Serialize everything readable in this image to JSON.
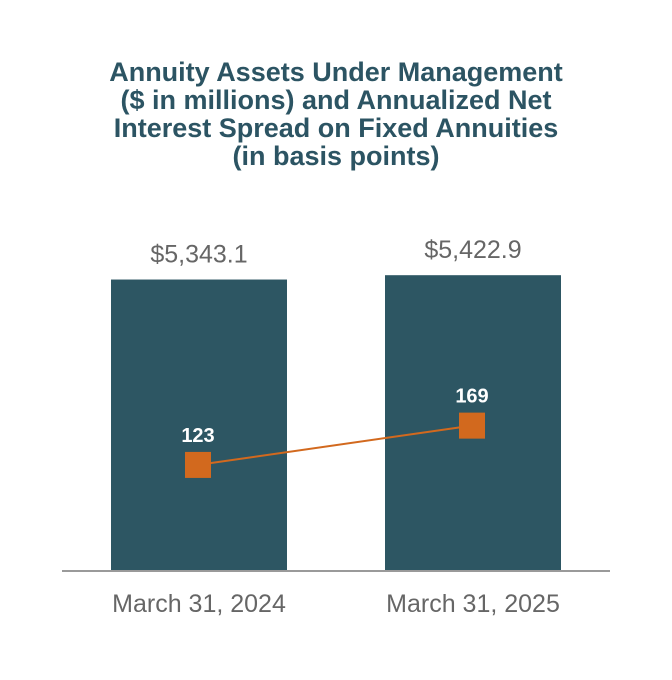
{
  "chart_data": {
    "type": "bar",
    "title": "Annuity Assets Under Management ($ in millions) and Annualized Net Interest Spread on Fixed Annuities (in basis points)",
    "categories": [
      "March 31, 2024",
      "March 31, 2025"
    ],
    "series": [
      {
        "name": "Annuity Assets Under Management ($ in millions)",
        "type": "bar",
        "values": [
          5343.1,
          5422.9
        ],
        "labels": [
          "$5,343.1",
          "$5,422.9"
        ],
        "color": "#2d5663",
        "ylim": [
          0,
          5500
        ]
      },
      {
        "name": "Annualized Net Interest Spread on Fixed Annuities (in basis points)",
        "type": "line",
        "values": [
          123,
          169
        ],
        "labels": [
          "123",
          "169"
        ],
        "color": "#d2691e",
        "ylim": [
          0,
          350
        ]
      }
    ],
    "legend": "none",
    "grid": false
  }
}
